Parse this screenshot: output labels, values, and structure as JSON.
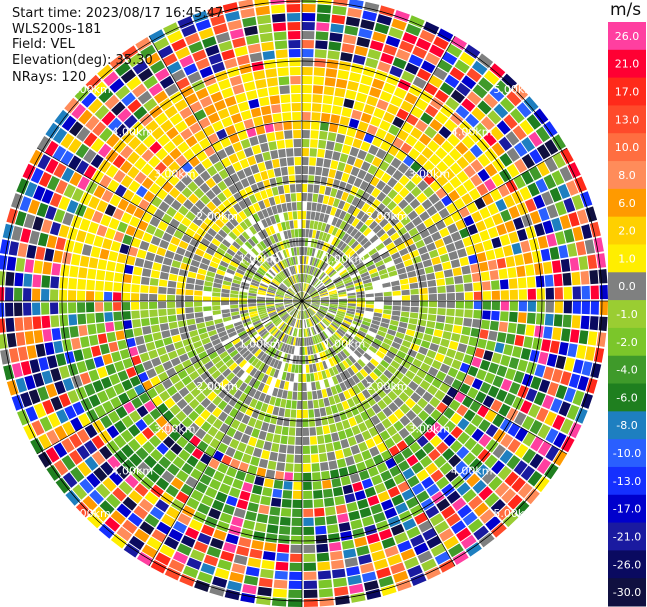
{
  "info": {
    "start_time": "Start time: 2023/08/17 16:45:47",
    "instrument": "WLS200s-181",
    "field": "Field: VEL",
    "elevation": "Elevation(deg): 35.30",
    "nrays": "NRays: 120"
  },
  "colorbar": {
    "unit": "m/s",
    "levels": [
      {
        "label": "26.0",
        "color": "#ff3fa0"
      },
      {
        "label": "21.0",
        "color": "#ff0033"
      },
      {
        "label": "17.0",
        "color": "#ff2a1a"
      },
      {
        "label": "13.0",
        "color": "#ff4a2a"
      },
      {
        "label": "10.0",
        "color": "#ff6e40"
      },
      {
        "label": "8.0",
        "color": "#ff8c5a"
      },
      {
        "label": "6.0",
        "color": "#ff9a00"
      },
      {
        "label": "2.0",
        "color": "#ffd000"
      },
      {
        "label": "1.0",
        "color": "#ffee00"
      },
      {
        "label": "0.0",
        "color": "#7f8080"
      },
      {
        "label": "-1.0",
        "color": "#9acd32"
      },
      {
        "label": "-2.0",
        "color": "#7bc62a"
      },
      {
        "label": "-4.0",
        "color": "#3f9a2a"
      },
      {
        "label": "-6.0",
        "color": "#1f7f1f"
      },
      {
        "label": "-8.0",
        "color": "#1e7fc0"
      },
      {
        "label": "-10.0",
        "color": "#2a5fff"
      },
      {
        "label": "-13.0",
        "color": "#1530ff"
      },
      {
        "label": "-17.0",
        "color": "#0000cc"
      },
      {
        "label": "-21.0",
        "color": "#1a1aa0"
      },
      {
        "label": "-26.0",
        "color": "#0a0a60"
      },
      {
        "label": "-30.0",
        "color": "#101040"
      }
    ]
  },
  "chart_data": {
    "type": "heatmap",
    "subtype": "polar-ppi",
    "nrays": 120,
    "range_rings": [
      {
        "label": "1.00km"
      },
      {
        "label": "2.00km"
      },
      {
        "label": "3.00km"
      },
      {
        "label": "4.00km"
      },
      {
        "label": "5.00km"
      }
    ],
    "grid": true,
    "regions": [
      {
        "range_km": [
          0,
          1.7
        ],
        "dominant": "mixed -2.0 / 0.0 / 2.0"
      },
      {
        "range_km": [
          1.7,
          2.8
        ],
        "dominant": "0.0 and -2.0"
      },
      {
        "range_km": [
          2.8,
          4.2
        ],
        "dominant": "2.0 to 6.0 north, -4.0 to -6.0 south"
      },
      {
        "range_km": [
          4.2,
          5.1
        ],
        "dominant": "noise, full scale"
      }
    ]
  }
}
